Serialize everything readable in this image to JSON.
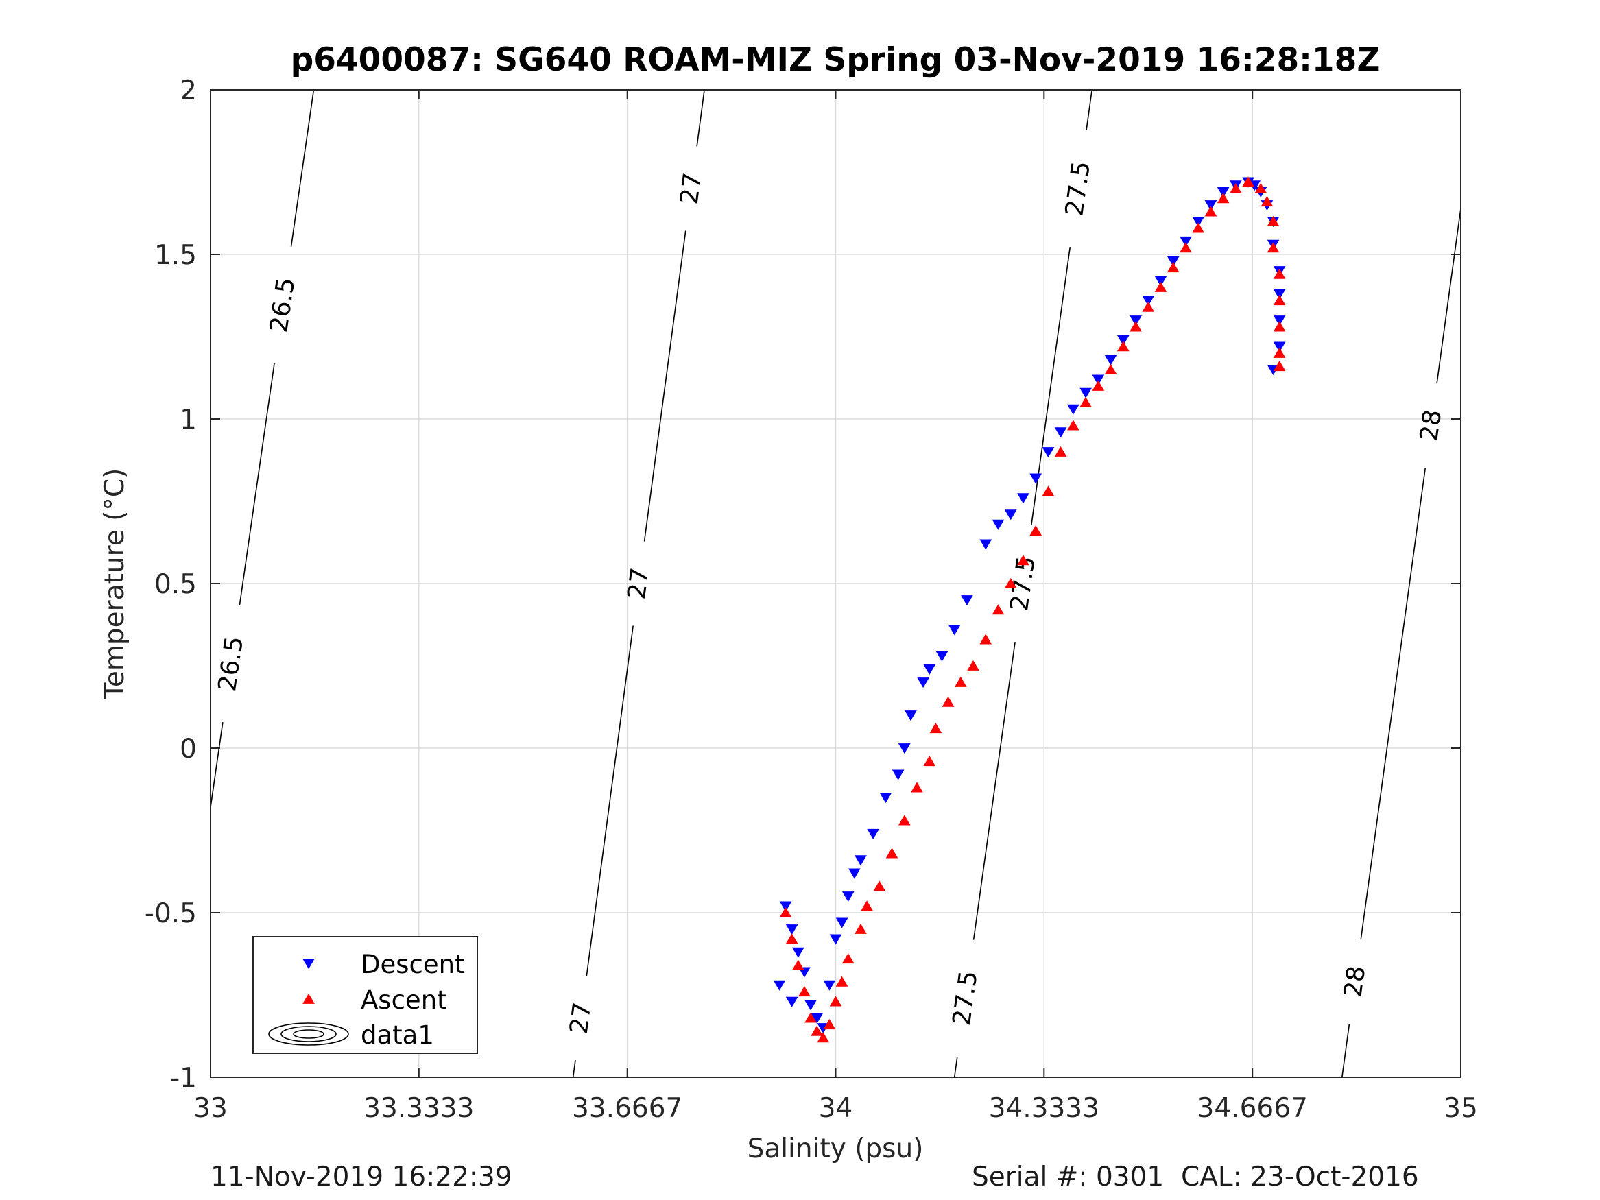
{
  "chart_data": {
    "type": "scatter",
    "title": "p6400087: SG640 ROAM-MIZ Spring 03-Nov-2019 16:28:18Z",
    "xlabel": "Salinity (psu)",
    "ylabel": "Temperature (°C)",
    "xlim": [
      33,
      35
    ],
    "ylim": [
      -1,
      2
    ],
    "x_ticks": [
      33,
      33.3333,
      33.6667,
      34,
      34.3333,
      34.6667,
      35
    ],
    "x_tick_labels": [
      "33",
      "33.3333",
      "33.6667",
      "34",
      "34.3333",
      "34.6667",
      "35"
    ],
    "y_ticks": [
      -1,
      -0.5,
      0,
      0.5,
      1,
      1.5,
      2
    ],
    "y_tick_labels": [
      "-1",
      "-0.5",
      "0",
      "0.5",
      "1",
      "1.5",
      "2"
    ],
    "grid": true,
    "legend_position": "bottom-left",
    "legend": [
      {
        "name": "Descent",
        "marker": "triangle-down",
        "color": "#0000ff"
      },
      {
        "name": "Ascent",
        "marker": "triangle-up",
        "color": "#ff0000"
      },
      {
        "name": "data1",
        "marker": "contour",
        "color": "#000000"
      }
    ],
    "series": [
      {
        "name": "Descent",
        "color": "#0000ff",
        "marker": "triangle-down",
        "points": [
          [
            33.91,
            -0.72
          ],
          [
            33.93,
            -0.77
          ],
          [
            33.92,
            -0.48
          ],
          [
            33.93,
            -0.55
          ],
          [
            33.94,
            -0.62
          ],
          [
            33.95,
            -0.68
          ],
          [
            33.96,
            -0.78
          ],
          [
            33.97,
            -0.82
          ],
          [
            33.98,
            -0.85
          ],
          [
            33.99,
            -0.72
          ],
          [
            34.0,
            -0.58
          ],
          [
            34.01,
            -0.53
          ],
          [
            34.02,
            -0.45
          ],
          [
            34.03,
            -0.38
          ],
          [
            34.04,
            -0.34
          ],
          [
            34.06,
            -0.26
          ],
          [
            34.08,
            -0.15
          ],
          [
            34.1,
            -0.08
          ],
          [
            34.11,
            0.0
          ],
          [
            34.12,
            0.1
          ],
          [
            34.14,
            0.2
          ],
          [
            34.15,
            0.24
          ],
          [
            34.17,
            0.28
          ],
          [
            34.19,
            0.36
          ],
          [
            34.21,
            0.45
          ],
          [
            34.24,
            0.62
          ],
          [
            34.26,
            0.68
          ],
          [
            34.28,
            0.71
          ],
          [
            34.3,
            0.76
          ],
          [
            34.32,
            0.82
          ],
          [
            34.34,
            0.9
          ],
          [
            34.36,
            0.96
          ],
          [
            34.38,
            1.03
          ],
          [
            34.4,
            1.08
          ],
          [
            34.42,
            1.12
          ],
          [
            34.44,
            1.18
          ],
          [
            34.46,
            1.24
          ],
          [
            34.48,
            1.3
          ],
          [
            34.5,
            1.36
          ],
          [
            34.52,
            1.42
          ],
          [
            34.54,
            1.48
          ],
          [
            34.56,
            1.54
          ],
          [
            34.58,
            1.6
          ],
          [
            34.6,
            1.65
          ],
          [
            34.62,
            1.69
          ],
          [
            34.64,
            1.71
          ],
          [
            34.66,
            1.72
          ],
          [
            34.67,
            1.71
          ],
          [
            34.68,
            1.69
          ],
          [
            34.69,
            1.65
          ],
          [
            34.7,
            1.6
          ],
          [
            34.7,
            1.53
          ],
          [
            34.71,
            1.45
          ],
          [
            34.71,
            1.38
          ],
          [
            34.71,
            1.3
          ],
          [
            34.71,
            1.22
          ],
          [
            34.7,
            1.15
          ]
        ]
      },
      {
        "name": "Ascent",
        "color": "#ff0000",
        "marker": "triangle-up",
        "points": [
          [
            33.92,
            -0.5
          ],
          [
            33.93,
            -0.58
          ],
          [
            33.94,
            -0.66
          ],
          [
            33.95,
            -0.74
          ],
          [
            33.96,
            -0.82
          ],
          [
            33.97,
            -0.86
          ],
          [
            33.98,
            -0.88
          ],
          [
            33.99,
            -0.84
          ],
          [
            34.0,
            -0.77
          ],
          [
            34.01,
            -0.71
          ],
          [
            34.02,
            -0.64
          ],
          [
            34.04,
            -0.55
          ],
          [
            34.05,
            -0.48
          ],
          [
            34.07,
            -0.42
          ],
          [
            34.09,
            -0.32
          ],
          [
            34.11,
            -0.22
          ],
          [
            34.13,
            -0.12
          ],
          [
            34.15,
            -0.04
          ],
          [
            34.16,
            0.06
          ],
          [
            34.18,
            0.14
          ],
          [
            34.2,
            0.2
          ],
          [
            34.22,
            0.25
          ],
          [
            34.24,
            0.33
          ],
          [
            34.26,
            0.42
          ],
          [
            34.28,
            0.5
          ],
          [
            34.3,
            0.57
          ],
          [
            34.32,
            0.66
          ],
          [
            34.34,
            0.78
          ],
          [
            34.36,
            0.9
          ],
          [
            34.38,
            0.98
          ],
          [
            34.4,
            1.05
          ],
          [
            34.42,
            1.1
          ],
          [
            34.44,
            1.15
          ],
          [
            34.46,
            1.22
          ],
          [
            34.48,
            1.28
          ],
          [
            34.5,
            1.34
          ],
          [
            34.52,
            1.4
          ],
          [
            34.54,
            1.46
          ],
          [
            34.56,
            1.52
          ],
          [
            34.58,
            1.58
          ],
          [
            34.6,
            1.63
          ],
          [
            34.62,
            1.67
          ],
          [
            34.64,
            1.7
          ],
          [
            34.66,
            1.72
          ],
          [
            34.68,
            1.7
          ],
          [
            34.69,
            1.66
          ],
          [
            34.7,
            1.6
          ],
          [
            34.7,
            1.52
          ],
          [
            34.71,
            1.44
          ],
          [
            34.71,
            1.36
          ],
          [
            34.71,
            1.28
          ],
          [
            34.71,
            1.2
          ],
          [
            34.71,
            1.16
          ]
        ]
      }
    ],
    "contours": [
      {
        "label": "26.5",
        "from": [
          33.0,
          -0.18
        ],
        "to": [
          33.165,
          2.0
        ],
        "label_at": [
          0.2,
          0.7
        ]
      },
      {
        "label": "27",
        "from": [
          33.58,
          -1.0
        ],
        "to": [
          33.79,
          2.0
        ],
        "label_at": [
          0.06,
          0.5,
          0.9
        ]
      },
      {
        "label": "27.5",
        "from": [
          34.19,
          -1.0
        ],
        "to": [
          34.41,
          2.0
        ],
        "label_at": [
          0.08,
          0.5,
          0.9
        ]
      },
      {
        "label": "28",
        "from": [
          34.81,
          -1.0
        ],
        "to": [
          35.0,
          1.64
        ],
        "label_at": [
          0.11,
          0.75
        ]
      }
    ]
  },
  "footer": {
    "left": "11-Nov-2019 16:22:39",
    "right": "Serial #: 0301  CAL: 23-Oct-2016"
  }
}
